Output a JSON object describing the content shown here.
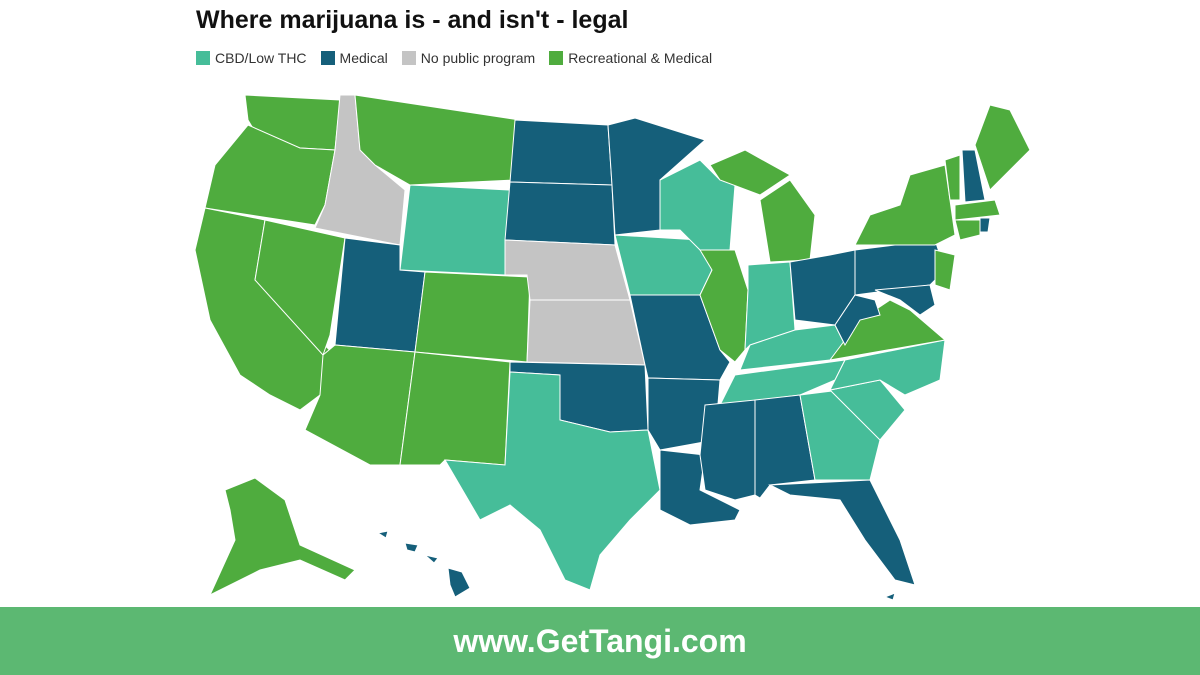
{
  "title": "Where marijuana is - and isn't - legal",
  "legend": [
    {
      "label": "CBD/Low THC",
      "color": "#46bd99"
    },
    {
      "label": "Medical",
      "color": "#155f7a"
    },
    {
      "label": "No public program",
      "color": "#c4c4c4"
    },
    {
      "label": "Recreational & Medical",
      "color": "#4fac3e"
    }
  ],
  "footer": "www.GetTangi.com"
}
